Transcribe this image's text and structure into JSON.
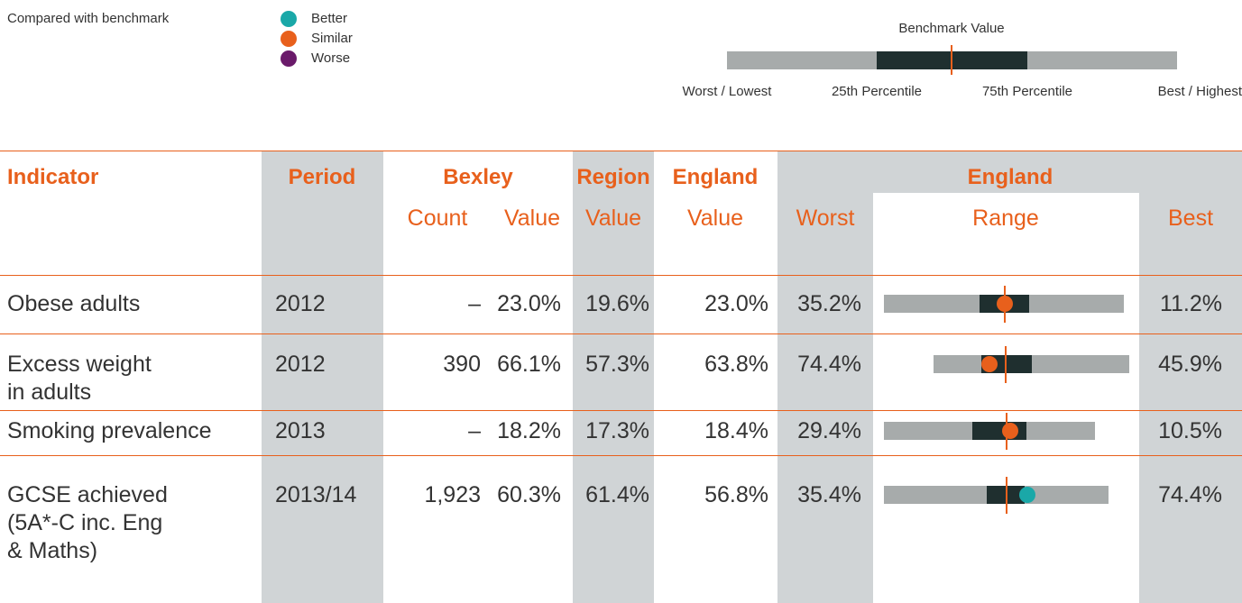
{
  "legend": {
    "label": "Compared with benchmark",
    "items": [
      "Better",
      "Similar",
      "Worse"
    ]
  },
  "key": {
    "title": "Benchmark Value",
    "labels": [
      "Worst / Lowest",
      "25th Percentile",
      "75th Percentile",
      "Best / Highest"
    ]
  },
  "table": {
    "header_row1": [
      "Indicator",
      "Period",
      "Bexley",
      "Region",
      "England",
      "England"
    ],
    "header_row2": [
      "Count",
      "Value",
      "Value",
      "Value",
      "Worst",
      "Range",
      "Best"
    ],
    "rows": [
      [
        "Obese adults",
        "2012",
        "–",
        "23.0%",
        "19.6%",
        "23.0%",
        "35.2%",
        "11.2%"
      ],
      [
        "Excess weight\nin adults",
        "2012",
        "390",
        "66.1%",
        "57.3%",
        "63.8%",
        "74.4%",
        "45.9%"
      ],
      [
        "Smoking prevalence",
        "2013",
        "–",
        "18.2%",
        "17.3%",
        "18.4%",
        "29.4%",
        "10.5%"
      ],
      [
        "GCSE achieved\n(5A*-C inc. Eng\n& Maths)",
        "2013/14",
        "1,923",
        "60.3%",
        "61.4%",
        "56.8%",
        "35.4%",
        "74.4%"
      ]
    ]
  }
}
